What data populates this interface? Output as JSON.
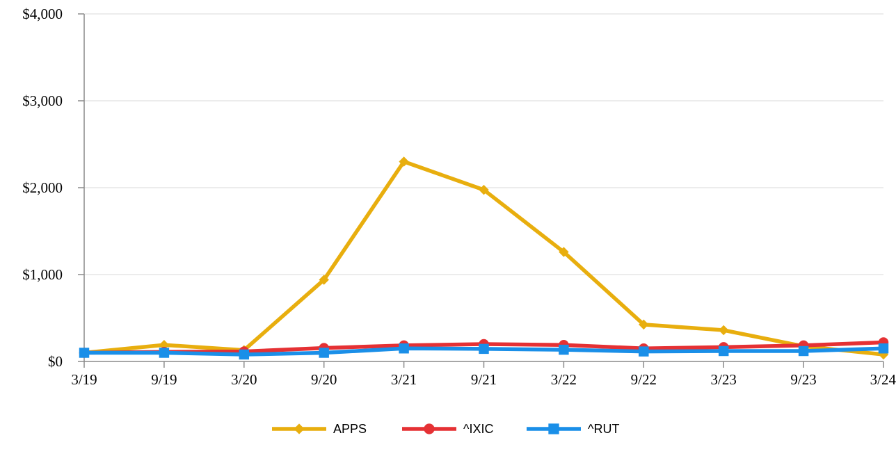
{
  "chart_data": {
    "type": "line",
    "title": "",
    "xlabel": "",
    "ylabel": "",
    "categories": [
      "3/19",
      "9/19",
      "3/20",
      "9/20",
      "3/21",
      "9/21",
      "3/22",
      "9/22",
      "3/23",
      "9/23",
      "3/24"
    ],
    "ylim": [
      0,
      4000
    ],
    "yticks": [
      0,
      1000,
      2000,
      3000,
      4000
    ],
    "ytick_labels": [
      "$0",
      "$1,000",
      "$2,000",
      "$3,000",
      "$4,000"
    ],
    "grid": true,
    "legend": "bottom-center",
    "series": [
      {
        "name": "APPS",
        "color": "#E8AE0E",
        "marker": "diamond",
        "values": [
          100,
          190,
          130,
          940,
          2300,
          1975,
          1260,
          425,
          360,
          175,
          80
        ]
      },
      {
        "name": "^IXIC",
        "color": "#E53134",
        "marker": "circle",
        "values": [
          100,
          110,
          115,
          155,
          185,
          200,
          190,
          150,
          165,
          185,
          220
        ]
      },
      {
        "name": "^RUT",
        "color": "#1A8FE8",
        "marker": "square",
        "values": [
          100,
          100,
          80,
          100,
          150,
          145,
          135,
          115,
          120,
          120,
          150
        ]
      }
    ]
  }
}
